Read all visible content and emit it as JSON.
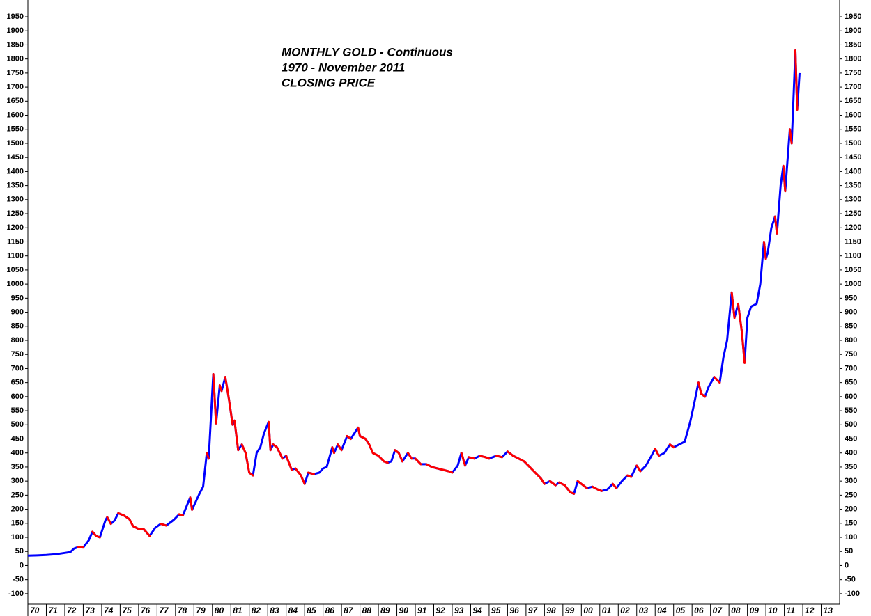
{
  "chart_data": {
    "type": "line",
    "title_lines": [
      "MONTHLY GOLD - Continuous",
      "1970 - November 2011",
      "CLOSING PRICE"
    ],
    "up_color": "#0000ff",
    "down_color": "#ff0000",
    "xlim": [
      1970,
      2014
    ],
    "ylim": [
      -125,
      2000
    ],
    "yticks": [
      -100,
      -50,
      0,
      50,
      100,
      150,
      200,
      250,
      300,
      350,
      400,
      450,
      500,
      550,
      600,
      650,
      700,
      750,
      800,
      850,
      900,
      950,
      1000,
      1050,
      1100,
      1150,
      1200,
      1250,
      1300,
      1350,
      1400,
      1450,
      1500,
      1550,
      1600,
      1650,
      1700,
      1750,
      1800,
      1850,
      1900,
      1950
    ],
    "xticks": [
      {
        "value": 1970,
        "label": "70"
      },
      {
        "value": 1971,
        "label": "71"
      },
      {
        "value": 1972,
        "label": "72"
      },
      {
        "value": 1973,
        "label": "73"
      },
      {
        "value": 1974,
        "label": "74"
      },
      {
        "value": 1975,
        "label": "75"
      },
      {
        "value": 1976,
        "label": "76"
      },
      {
        "value": 1977,
        "label": "77"
      },
      {
        "value": 1978,
        "label": "78"
      },
      {
        "value": 1979,
        "label": "79"
      },
      {
        "value": 1980,
        "label": "80"
      },
      {
        "value": 1981,
        "label": "81"
      },
      {
        "value": 1982,
        "label": "82"
      },
      {
        "value": 1983,
        "label": "83"
      },
      {
        "value": 1984,
        "label": "84"
      },
      {
        "value": 1985,
        "label": "85"
      },
      {
        "value": 1986,
        "label": "86"
      },
      {
        "value": 1987,
        "label": "87"
      },
      {
        "value": 1988,
        "label": "88"
      },
      {
        "value": 1989,
        "label": "89"
      },
      {
        "value": 1990,
        "label": "90"
      },
      {
        "value": 1991,
        "label": "91"
      },
      {
        "value": 1992,
        "label": "92"
      },
      {
        "value": 1993,
        "label": "93"
      },
      {
        "value": 1994,
        "label": "94"
      },
      {
        "value": 1995,
        "label": "95"
      },
      {
        "value": 1996,
        "label": "96"
      },
      {
        "value": 1997,
        "label": "97"
      },
      {
        "value": 1998,
        "label": "98"
      },
      {
        "value": 1999,
        "label": "99"
      },
      {
        "value": 2000,
        "label": "00"
      },
      {
        "value": 2001,
        "label": "01"
      },
      {
        "value": 2002,
        "label": "02"
      },
      {
        "value": 2003,
        "label": "03"
      },
      {
        "value": 2004,
        "label": "04"
      },
      {
        "value": 2005,
        "label": "05"
      },
      {
        "value": 2006,
        "label": "06"
      },
      {
        "value": 2007,
        "label": "07"
      },
      {
        "value": 2008,
        "label": "08"
      },
      {
        "value": 2009,
        "label": "09"
      },
      {
        "value": 2010,
        "label": "10"
      },
      {
        "value": 2011,
        "label": "11"
      },
      {
        "value": 2012,
        "label": "12"
      },
      {
        "value": 2013,
        "label": "13"
      }
    ],
    "x": [
      1970.0,
      1970.5,
      1971.0,
      1971.5,
      1972.0,
      1972.3,
      1972.5,
      1972.7,
      1973.0,
      1973.3,
      1973.5,
      1973.7,
      1973.9,
      1974.2,
      1974.3,
      1974.5,
      1974.7,
      1974.9,
      1975.2,
      1975.5,
      1975.7,
      1976.0,
      1976.3,
      1976.6,
      1976.9,
      1977.2,
      1977.5,
      1977.9,
      1978.2,
      1978.4,
      1978.8,
      1978.9,
      1979.3,
      1979.5,
      1979.7,
      1979.8,
      1980.05,
      1980.2,
      1980.4,
      1980.5,
      1980.7,
      1980.9,
      1981.1,
      1981.2,
      1981.4,
      1981.6,
      1981.8,
      1982.0,
      1982.2,
      1982.4,
      1982.6,
      1982.8,
      1983.05,
      1983.15,
      1983.3,
      1983.5,
      1983.8,
      1984.0,
      1984.3,
      1984.5,
      1984.8,
      1985.0,
      1985.2,
      1985.5,
      1985.8,
      1986.0,
      1986.2,
      1986.5,
      1986.6,
      1986.8,
      1987.0,
      1987.3,
      1987.5,
      1987.9,
      1988.0,
      1988.3,
      1988.5,
      1988.7,
      1989.0,
      1989.3,
      1989.5,
      1989.7,
      1989.9,
      1990.1,
      1990.3,
      1990.6,
      1990.8,
      1991.0,
      1991.3,
      1991.6,
      1991.9,
      1992.2,
      1992.5,
      1992.8,
      1993.0,
      1993.3,
      1993.5,
      1993.7,
      1993.9,
      1994.2,
      1994.5,
      1994.8,
      1995.0,
      1995.4,
      1995.7,
      1996.0,
      1996.3,
      1996.6,
      1996.9,
      1997.2,
      1997.5,
      1997.8,
      1998.0,
      1998.3,
      1998.6,
      1998.8,
      1999.1,
      1999.4,
      1999.6,
      1999.8,
      2000.1,
      2000.3,
      2000.6,
      2000.9,
      2001.1,
      2001.4,
      2001.7,
      2001.9,
      2002.2,
      2002.5,
      2002.7,
      2003.0,
      2003.2,
      2003.5,
      2003.8,
      2004.0,
      2004.2,
      2004.5,
      2004.8,
      2005.0,
      2005.3,
      2005.6,
      2005.9,
      2006.1,
      2006.35,
      2006.5,
      2006.7,
      2006.9,
      2007.2,
      2007.5,
      2007.7,
      2007.9,
      2008.15,
      2008.3,
      2008.5,
      2008.7,
      2008.85,
      2009.0,
      2009.2,
      2009.5,
      2009.7,
      2009.9,
      2010.0,
      2010.1,
      2010.3,
      2010.5,
      2010.6,
      2010.8,
      2010.95,
      2011.05,
      2011.3,
      2011.4,
      2011.6,
      2011.7,
      2011.83
    ],
    "series": [
      {
        "values": [
          35,
          36,
          37.5,
          40,
          45,
          48,
          60,
          65,
          64,
          90,
          120,
          105,
          100,
          160,
          172,
          148,
          160,
          186,
          178,
          165,
          140,
          130,
          128,
          105,
          134,
          148,
          142,
          162,
          182,
          178,
          242,
          198,
          255,
          280,
          400,
          380,
          680,
          505,
          640,
          620,
          670,
          590,
          500,
          515,
          410,
          430,
          400,
          330,
          320,
          400,
          420,
          470,
          510,
          410,
          430,
          420,
          380,
          390,
          340,
          345,
          320,
          290,
          330,
          325,
          330,
          345,
          350,
          420,
          400,
          430,
          410,
          460,
          450,
          490,
          460,
          450,
          430,
          400,
          390,
          370,
          365,
          370,
          410,
          400,
          370,
          400,
          380,
          380,
          360,
          360,
          350,
          345,
          340,
          335,
          330,
          355,
          400,
          355,
          385,
          380,
          390,
          385,
          380,
          390,
          385,
          405,
          390,
          380,
          370,
          350,
          330,
          310,
          290,
          300,
          285,
          295,
          285,
          260,
          255,
          300,
          285,
          275,
          280,
          270,
          265,
          270,
          290,
          275,
          300,
          320,
          315,
          355,
          335,
          355,
          390,
          415,
          390,
          400,
          430,
          420,
          430,
          440,
          510,
          570,
          650,
          610,
          600,
          635,
          670,
          650,
          740,
          800,
          970,
          880,
          930,
          830,
          720,
          880,
          920,
          930,
          1000,
          1150,
          1090,
          1110,
          1200,
          1240,
          1180,
          1350,
          1420,
          1330,
          1550,
          1500,
          1830,
          1620,
          1750
        ]
      }
    ]
  }
}
